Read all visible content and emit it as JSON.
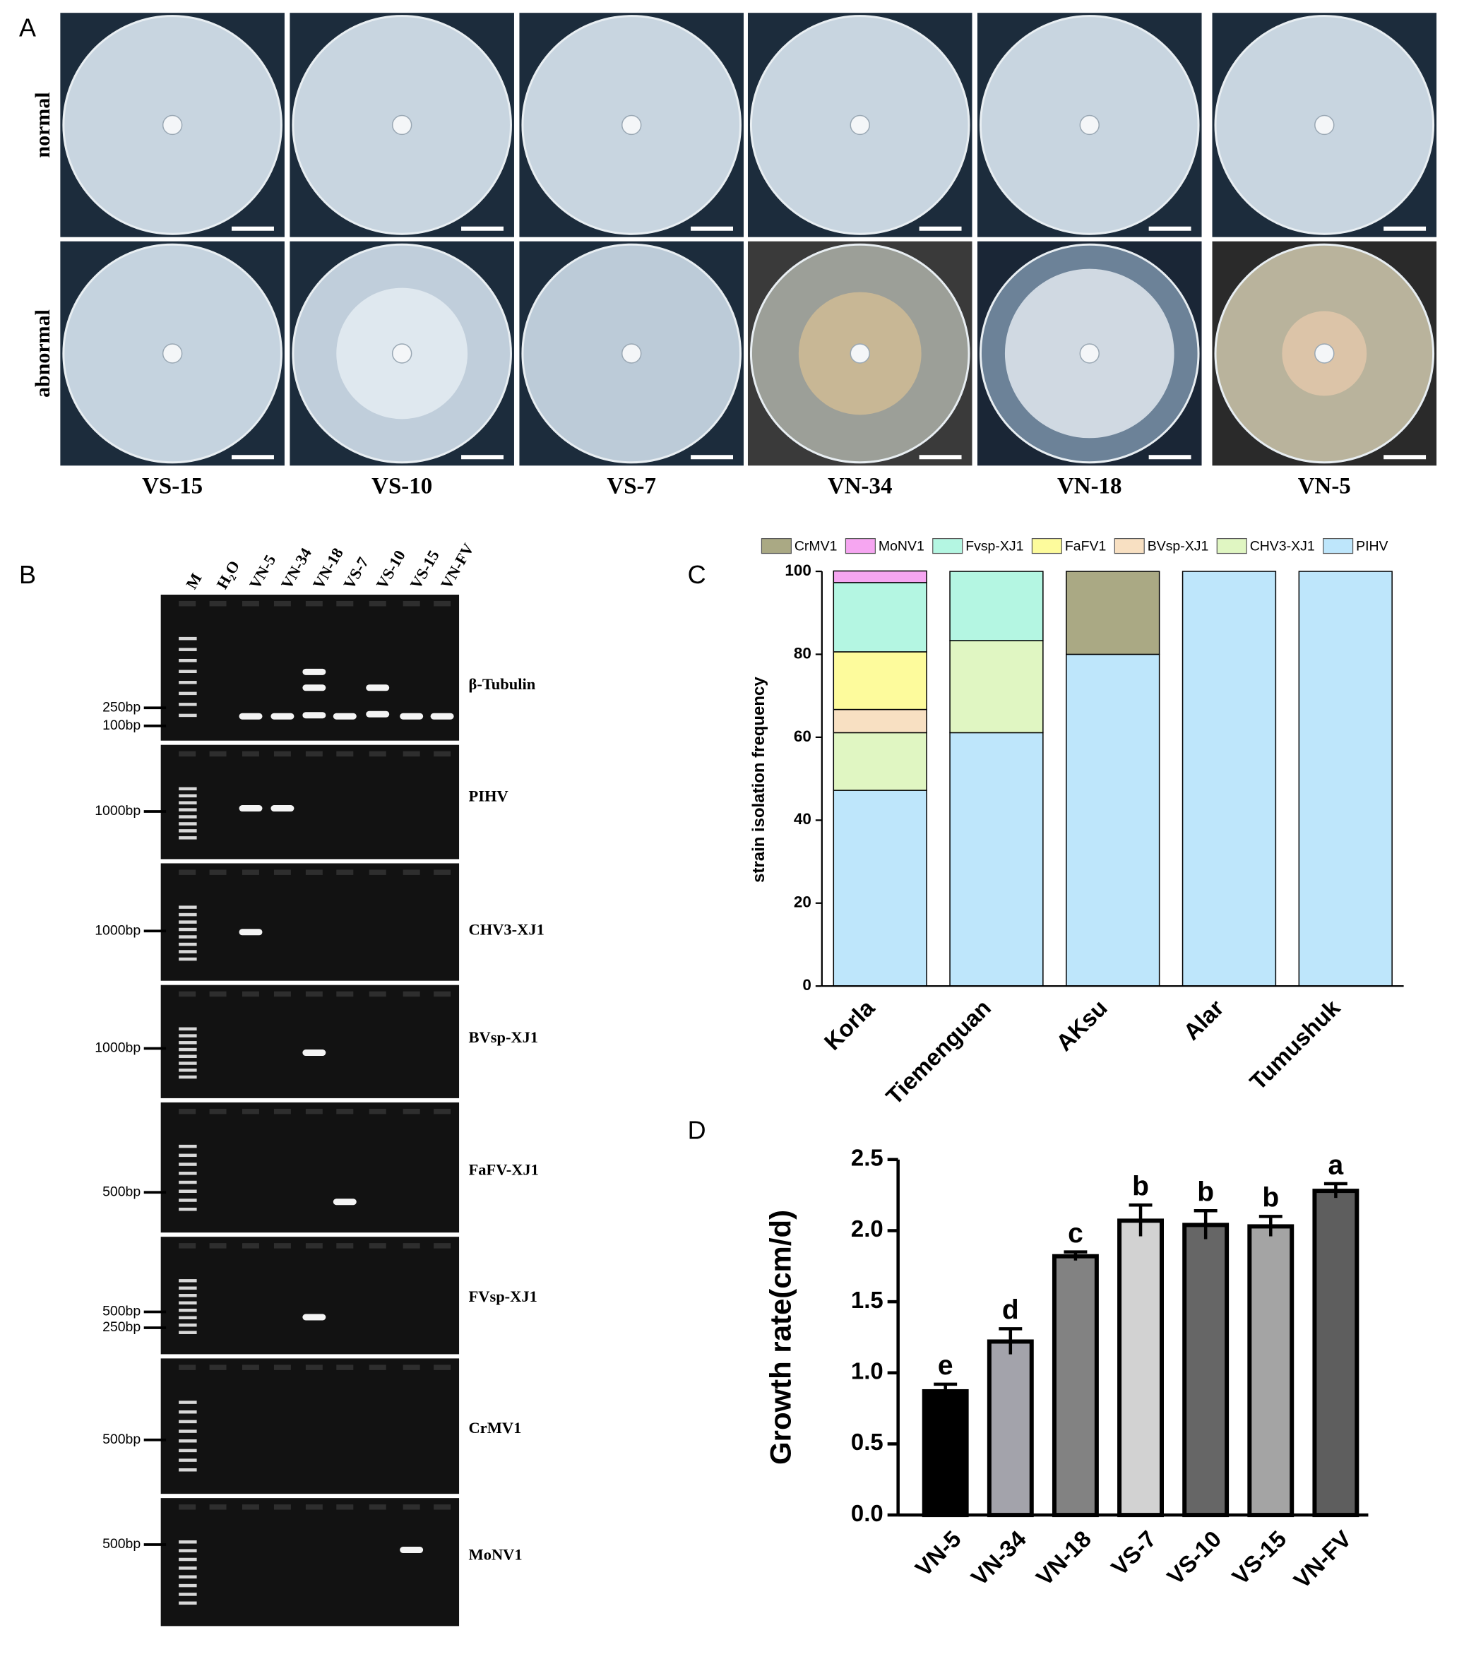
{
  "panel_a": {
    "letter": "A",
    "row_labels": [
      "normal",
      "abnormal"
    ],
    "strains": [
      "VS-15",
      "VS-10",
      "VS-7",
      "VN-34",
      "VN-18",
      "VN-5"
    ]
  },
  "panel_b": {
    "letter": "B",
    "lanes": [
      "M",
      "H₂O",
      "VN-5",
      "VN-34",
      "VN-18",
      "VS-7",
      "VS-10",
      "VS-15",
      "VN-FV"
    ],
    "gels": [
      {
        "label": "β-Tubulin",
        "markers": [
          "250bp",
          "100bp"
        ]
      },
      {
        "label": "PIHV",
        "markers": [
          "1000bp"
        ]
      },
      {
        "label": "CHV3-XJ1",
        "markers": [
          "1000bp"
        ]
      },
      {
        "label": "BVsp-XJ1",
        "markers": [
          "1000bp"
        ]
      },
      {
        "label": "FaFV-XJ1",
        "markers": [
          "500bp"
        ]
      },
      {
        "label": "FVsp-XJ1",
        "markers": [
          "500bp",
          "250bp"
        ]
      },
      {
        "label": "CrMV1",
        "markers": [
          "500bp"
        ]
      },
      {
        "label": "MoNV1",
        "markers": [
          "500bp"
        ]
      }
    ]
  },
  "chart_data": [
    {
      "type": "stacked-bar",
      "panel": "C",
      "y_label": "strain isolation frequency",
      "categories": [
        "Korla",
        "Tiemenguan",
        "AKsu",
        "Alar",
        "Tumushuk"
      ],
      "series": [
        {
          "name": "CrMV1",
          "color": "#aaa984",
          "values": [
            0,
            0,
            20,
            0,
            0
          ]
        },
        {
          "name": "MoNV1",
          "color": "#f6a6f1",
          "values": [
            2.8,
            0,
            0,
            0,
            0
          ]
        },
        {
          "name": "Fvsp-XJ1",
          "color": "#b4f6e2",
          "values": [
            16.7,
            16.7,
            0,
            0,
            0
          ]
        },
        {
          "name": "FaFV1",
          "color": "#fdfb9c",
          "values": [
            13.9,
            0,
            0,
            0,
            0
          ]
        },
        {
          "name": "BVsp-XJ1",
          "color": "#f8e0c2",
          "values": [
            5.6,
            0,
            0,
            0,
            0
          ]
        },
        {
          "name": "CHV3-XJ1",
          "color": "#e0f6c2",
          "values": [
            13.9,
            22.2,
            0,
            0,
            0
          ]
        },
        {
          "name": "PIHV",
          "color": "#bee6fb",
          "values": [
            47.2,
            61.1,
            80,
            100,
            100
          ]
        }
      ],
      "ylim": [
        0,
        100
      ],
      "yticks": [
        0,
        20,
        40,
        60,
        80,
        100
      ]
    },
    {
      "type": "bar",
      "panel": "D",
      "y_label": "Growth rate(cm/d)",
      "categories": [
        "VN-5",
        "VN-34",
        "VN-18",
        "VS-7",
        "VS-10",
        "VS-15",
        "VN-FV"
      ],
      "values": [
        0.87,
        1.22,
        1.82,
        2.07,
        2.04,
        2.03,
        2.28
      ],
      "errors": [
        0.05,
        0.09,
        0.03,
        0.11,
        0.1,
        0.07,
        0.05
      ],
      "value_labels": [
        "e",
        "d",
        "c",
        "b",
        "b",
        "b",
        "a"
      ],
      "colors": [
        "#000000",
        "#a3a3ab",
        "#828282",
        "#d2d2d2",
        "#666666",
        "#a4a4a4",
        "#5e5e5e"
      ],
      "ylim": [
        0,
        2.5
      ],
      "yticks": [
        {
          "value": 0,
          "label": "0.0"
        },
        0.5,
        {
          "value": 1,
          "label": "1.0"
        },
        1.5,
        {
          "value": 2,
          "label": "2.0"
        },
        2.5
      ]
    }
  ]
}
